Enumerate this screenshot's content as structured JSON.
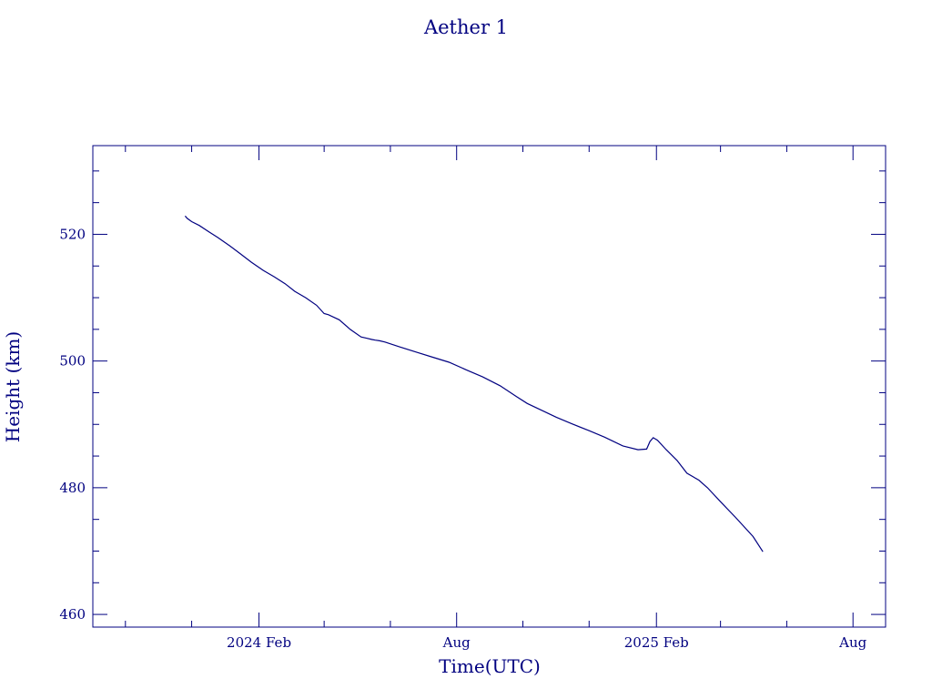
{
  "chart_data": {
    "type": "line",
    "title": "Aether 1",
    "xlabel": "Time(UTC)",
    "ylabel": "Height (km)",
    "x_axis_type": "date",
    "xlim": [
      "2023-09-01",
      "2025-08-31"
    ],
    "ylim": [
      458,
      534
    ],
    "y_ticks": [
      460,
      480,
      500,
      520
    ],
    "y_tick_labels": [
      "460",
      "480",
      "500",
      "520"
    ],
    "x_ticks": [
      "2024-02-01",
      "2024-08-01",
      "2025-02-01",
      "2025-08-01"
    ],
    "x_tick_labels": [
      "2024 Feb",
      "Aug",
      "2025 Feb",
      "Aug"
    ],
    "x_minor_ticks": [
      "2023-10-01",
      "2023-12-01",
      "2024-04-01",
      "2024-06-01",
      "2024-10-01",
      "2024-12-01",
      "2025-04-01",
      "2025-06-01"
    ],
    "grid": false,
    "color": "#000080",
    "series": [
      {
        "x": [
          "2023-11-25",
          "2023-11-27",
          "2023-12-01",
          "2023-12-08",
          "2023-12-15",
          "2023-12-25",
          "2024-01-05",
          "2024-01-15",
          "2024-01-25",
          "2024-02-05",
          "2024-02-15",
          "2024-02-25",
          "2024-03-05",
          "2024-03-15",
          "2024-03-25",
          "2024-04-01",
          "2024-04-05",
          "2024-04-15",
          "2024-04-25",
          "2024-05-05",
          "2024-05-10",
          "2024-05-15",
          "2024-05-18",
          "2024-05-22",
          "2024-05-27",
          "2024-06-10",
          "2024-06-25",
          "2024-07-10",
          "2024-07-25",
          "2024-08-10",
          "2024-08-25",
          "2024-09-10",
          "2024-09-25",
          "2024-10-05",
          "2024-10-15",
          "2024-11-01",
          "2024-11-15",
          "2024-12-01",
          "2024-12-15",
          "2025-01-01",
          "2025-01-15",
          "2025-01-23",
          "2025-01-26",
          "2025-01-29",
          "2025-02-02",
          "2025-02-10",
          "2025-02-20",
          "2025-03-01",
          "2025-03-12",
          "2025-03-20",
          "2025-04-01",
          "2025-04-15",
          "2025-05-01",
          "2025-05-10"
        ],
        "y": [
          522.9,
          522.5,
          522.0,
          521.4,
          520.6,
          519.5,
          518.2,
          516.9,
          515.6,
          514.3,
          513.3,
          512.2,
          511.0,
          510.0,
          508.8,
          507.5,
          507.3,
          506.5,
          505.0,
          503.8,
          503.6,
          503.4,
          503.3,
          503.2,
          503.0,
          502.2,
          501.4,
          500.6,
          499.8,
          498.6,
          497.5,
          496.1,
          494.4,
          493.3,
          492.5,
          491.1,
          490.1,
          489.0,
          488.0,
          486.6,
          486.0,
          486.1,
          487.3,
          487.9,
          487.5,
          486.0,
          484.3,
          482.3,
          481.2,
          480.0,
          477.8,
          475.3,
          472.3,
          469.9
        ]
      }
    ]
  }
}
